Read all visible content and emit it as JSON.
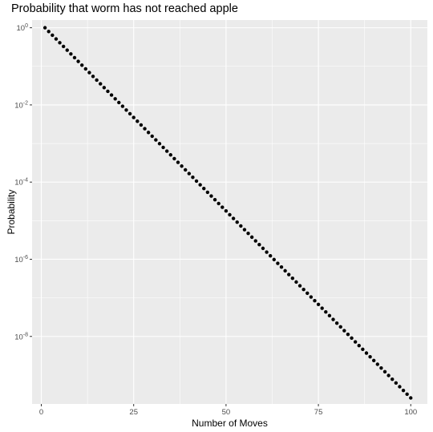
{
  "chart_data": {
    "type": "scatter",
    "title": "Probability that worm has not reached apple",
    "xlabel": "Number of Moves",
    "ylabel": "Probability",
    "xlim": [
      -2.5,
      104.5
    ],
    "ylim_log10": [
      -9.75,
      0.2
    ],
    "y_scale": "log10",
    "x_ticks": [
      0,
      25,
      50,
      75,
      100
    ],
    "x_tick_labels": [
      "0",
      "25",
      "50",
      "75",
      "100"
    ],
    "y_ticks": [
      {
        "base": "10",
        "exponent": "0",
        "value": 1
      },
      {
        "base": "10",
        "exponent": "-2",
        "value": 0.01
      },
      {
        "base": "10",
        "exponent": "-4",
        "value": 0.0001
      },
      {
        "base": "10",
        "exponent": "-6",
        "value": 1e-06
      },
      {
        "base": "10",
        "exponent": "-8",
        "value": 1e-08
      }
    ],
    "grid": true,
    "series": [
      {
        "x_start": 1,
        "x_end": 100,
        "x_step": 1,
        "y_at_x_start": 1,
        "y_ratio_per_move": 0.8,
        "color": "#000000"
      }
    ]
  },
  "colors": {
    "panel": "#ebebeb",
    "grid_major": "#ffffff",
    "tick": "#333333",
    "tick_label": "#4d4d4d",
    "point": "#000000"
  }
}
